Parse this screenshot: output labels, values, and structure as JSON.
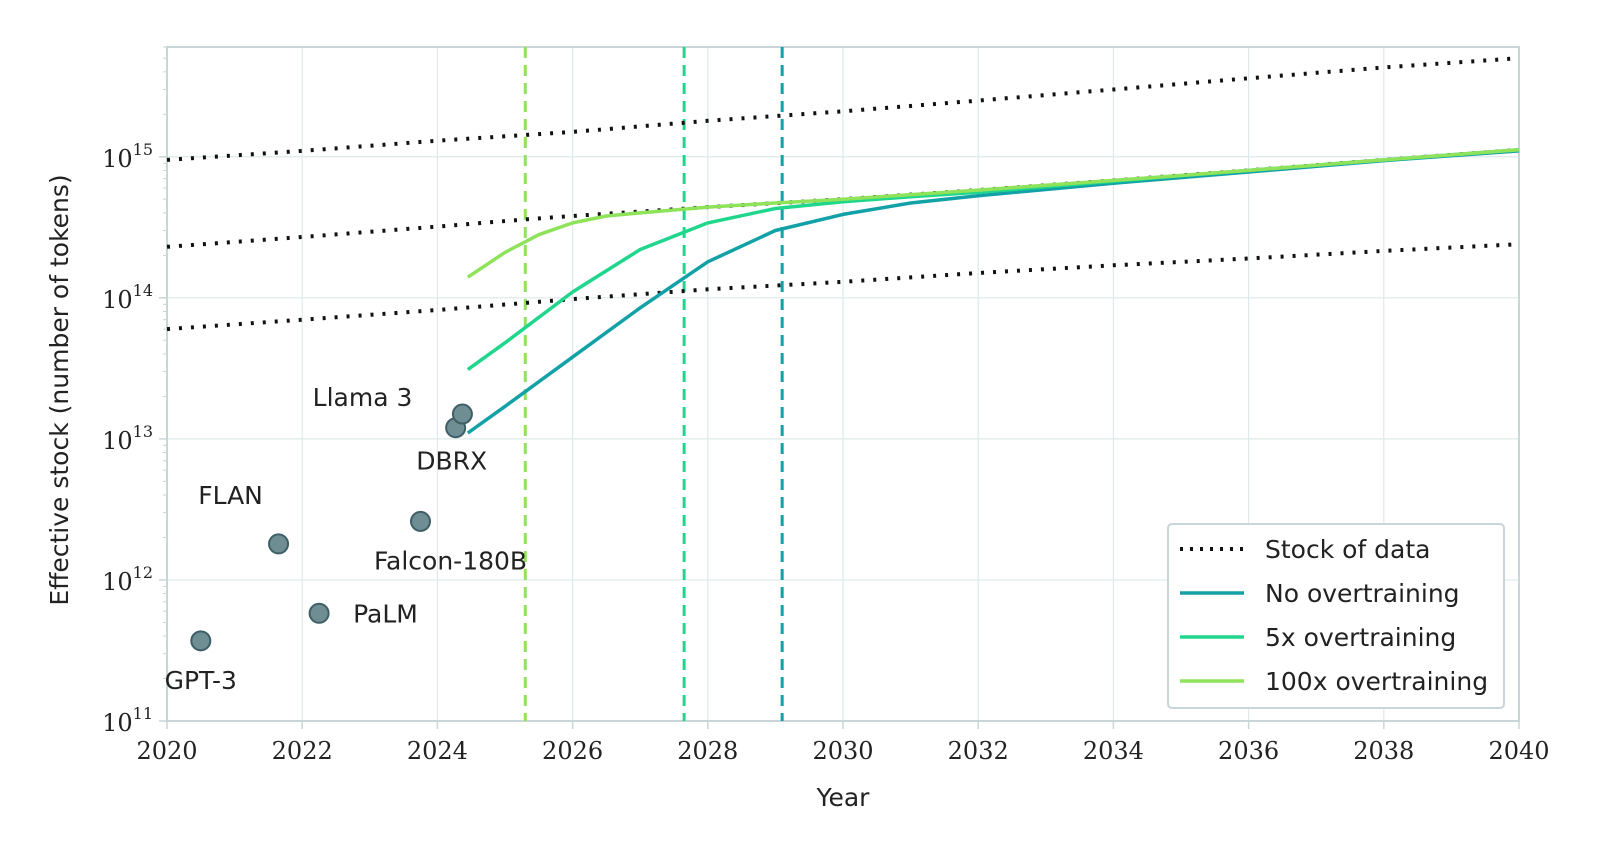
{
  "chart_data": {
    "type": "line",
    "xlabel": "Year",
    "ylabel": "Effective stock (number of tokens)",
    "xlim": [
      2020,
      2040
    ],
    "ylim": [
      100000000000.0,
      6000000000000000.0
    ],
    "y_scale": "log",
    "grid": true,
    "x_ticks": [
      "2020",
      "2022",
      "2024",
      "2026",
      "2028",
      "2030",
      "2032",
      "2034",
      "2036",
      "2038",
      "2040"
    ],
    "y_ticks": [
      {
        "value": 100000000000.0,
        "base": "10",
        "exp": "11"
      },
      {
        "value": 1000000000000.0,
        "base": "10",
        "exp": "12"
      },
      {
        "value": 10000000000000.0,
        "base": "10",
        "exp": "13"
      },
      {
        "value": 100000000000000.0,
        "base": "10",
        "exp": "14"
      },
      {
        "value": 1000000000000000.0,
        "base": "10",
        "exp": "15"
      }
    ],
    "legend": {
      "position": "bottom-right",
      "entries": [
        {
          "label": "Stock of data",
          "style": "dotted",
          "color": "#111111"
        },
        {
          "label": "No overtraining",
          "style": "solid",
          "color": "#12a1a6"
        },
        {
          "label": "5x overtraining",
          "style": "solid",
          "color": "#1fd68c"
        },
        {
          "label": "100x overtraining",
          "style": "solid",
          "color": "#8ee35a"
        }
      ]
    },
    "series": [
      {
        "name": "Stock of data",
        "style": "dotted",
        "color": "#111111",
        "x": [
          2020,
          2022,
          2024,
          2025.3,
          2026,
          2028,
          2030,
          2032,
          2034,
          2036,
          2038,
          2040
        ],
        "y": [
          230000000000000.0,
          270000000000000.0,
          320000000000000.0,
          360000000000000.0,
          380000000000000.0,
          440000000000000.0,
          500000000000000.0,
          580000000000000.0,
          680000000000000.0,
          800000000000000.0,
          950000000000000.0,
          1120000000000000.0
        ]
      },
      {
        "name": "Stock of data upper bound",
        "style": "dotted",
        "color": "#111111",
        "x": [
          2020,
          2022,
          2024,
          2026,
          2028,
          2030,
          2032,
          2034,
          2036,
          2038,
          2040
        ],
        "y": [
          950000000000000.0,
          1100000000000000.0,
          1300000000000000.0,
          1500000000000000.0,
          1800000000000000.0,
          2100000000000000.0,
          2500000000000000.0,
          3000000000000000.0,
          3600000000000000.0,
          4300000000000000.0,
          5000000000000000.0
        ]
      },
      {
        "name": "Stock of data lower bound",
        "style": "dotted",
        "color": "#111111",
        "x": [
          2020,
          2022,
          2024,
          2026,
          2028,
          2030,
          2032,
          2034,
          2036,
          2038,
          2040
        ],
        "y": [
          60000000000000.0,
          70000000000000.0,
          82000000000000.0,
          98000000000000.0,
          115000000000000.0,
          130000000000000.0,
          150000000000000.0,
          170000000000000.0,
          190000000000000.0,
          215000000000000.0,
          240000000000000.0
        ]
      },
      {
        "name": "No overtraining",
        "style": "solid",
        "color": "#12a1a6",
        "x": [
          2024.45,
          2025,
          2026,
          2027,
          2028,
          2029,
          2030,
          2031,
          2032,
          2034,
          2036,
          2038,
          2040
        ],
        "y": [
          11000000000000.0,
          17000000000000.0,
          38000000000000.0,
          85000000000000.0,
          180000000000000.0,
          300000000000000.0,
          390000000000000.0,
          470000000000000.0,
          530000000000000.0,
          650000000000000.0,
          780000000000000.0,
          940000000000000.0,
          1100000000000000.0
        ]
      },
      {
        "name": "5x overtraining",
        "style": "solid",
        "color": "#1fd68c",
        "x": [
          2024.45,
          2025,
          2026,
          2027,
          2028,
          2029,
          2030,
          2031,
          2032,
          2034,
          2036,
          2038,
          2040
        ],
        "y": [
          31000000000000.0,
          48000000000000.0,
          110000000000000.0,
          220000000000000.0,
          340000000000000.0,
          430000000000000.0,
          480000000000000.0,
          520000000000000.0,
          560000000000000.0,
          670000000000000.0,
          800000000000000.0,
          950000000000000.0,
          1120000000000000.0
        ]
      },
      {
        "name": "100x overtraining",
        "style": "solid",
        "color": "#8ee35a",
        "x": [
          2024.45,
          2025,
          2025.5,
          2026,
          2026.5,
          2027,
          2028,
          2029,
          2030,
          2032,
          2034,
          2036,
          2038,
          2040
        ],
        "y": [
          140000000000000.0,
          210000000000000.0,
          280000000000000.0,
          340000000000000.0,
          380000000000000.0,
          400000000000000.0,
          440000000000000.0,
          470000000000000.0,
          500000000000000.0,
          580000000000000.0,
          680000000000000.0,
          800000000000000.0,
          950000000000000.0,
          1120000000000000.0
        ]
      }
    ],
    "vertical_lines": [
      {
        "x": 2025.3,
        "color": "#8ee35a",
        "style": "dashed"
      },
      {
        "x": 2027.65,
        "color": "#1fd68c",
        "style": "dashed"
      },
      {
        "x": 2029.1,
        "color": "#12a1a6",
        "style": "dashed"
      }
    ],
    "models": [
      {
        "name": "GPT-3",
        "x": 2020.5,
        "y": 370000000000.0,
        "label_anchor": "below"
      },
      {
        "name": "FLAN",
        "x": 2021.65,
        "y": 1800000000000.0,
        "label_anchor": "upper-left"
      },
      {
        "name": "PaLM",
        "x": 2022.25,
        "y": 580000000000.0,
        "label_anchor": "right"
      },
      {
        "name": "Falcon-180B",
        "x": 2023.75,
        "y": 2600000000000.0,
        "label_anchor": "below"
      },
      {
        "name": "DBRX",
        "x": 2024.27,
        "y": 12000000000000.0,
        "label_anchor": "below"
      },
      {
        "name": "Llama 3",
        "x": 2024.37,
        "y": 15000000000000.0,
        "label_anchor": "left"
      }
    ],
    "colors": {
      "grid": "#dde9ea",
      "axis": "#c9d6d8",
      "model_fill": "#6e8e94",
      "model_stroke": "#3f5f66"
    }
  }
}
